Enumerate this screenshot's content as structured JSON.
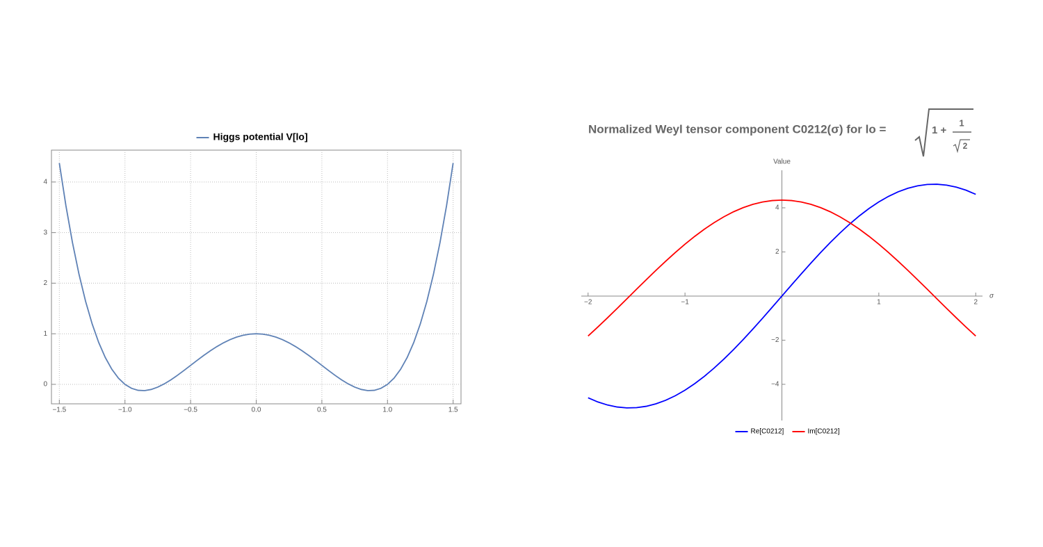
{
  "chart_data": [
    {
      "type": "line",
      "legend": "top",
      "grid": true,
      "x": [
        -1.5,
        -1.45,
        -1.4,
        -1.35,
        -1.3,
        -1.25,
        -1.2,
        -1.15,
        -1.1,
        -1.05,
        -1,
        -0.95,
        -0.9,
        -0.85,
        -0.8,
        -0.75,
        -0.7,
        -0.65,
        -0.6,
        -0.55,
        -0.5,
        -0.45,
        -0.4,
        -0.35,
        -0.3,
        -0.25,
        -0.2,
        -0.15,
        -0.1,
        -0.05,
        0,
        0.05,
        0.1,
        0.15,
        0.2,
        0.25,
        0.3,
        0.35,
        0.4,
        0.45,
        0.5,
        0.55,
        0.6,
        0.65,
        0.7,
        0.75,
        0.8,
        0.85,
        0.9,
        0.95,
        1,
        1.05,
        1.1,
        1.15,
        1.2,
        1.25,
        1.3,
        1.35,
        1.4,
        1.45,
        1.5
      ],
      "series": [
        {
          "name": "Higgs potential V[lo]",
          "color": "#5e81b5",
          "values": [
            4.375,
            3.5335,
            2.8032,
            2.1755,
            1.6422,
            1.1953,
            0.8272,
            0.5305,
            0.2982,
            0.1235,
            0,
            -0.0785,
            -0.1178,
            -0.1235,
            -0.1008,
            -0.0547,
            0.0102,
            0.0895,
            0.1792,
            0.2755,
            0.375,
            0.4745,
            0.5712,
            0.6625,
            0.7462,
            0.8203,
            0.8832,
            0.9335,
            0.9702,
            0.9925,
            1,
            0.9925,
            0.9702,
            0.9335,
            0.8832,
            0.8203,
            0.7462,
            0.6625,
            0.5712,
            0.4745,
            0.375,
            0.2755,
            0.1792,
            0.0895,
            0.0102,
            -0.0547,
            -0.1008,
            -0.1235,
            -0.1178,
            -0.0785,
            0,
            0.1235,
            0.2982,
            0.5305,
            0.8272,
            1.1953,
            1.6422,
            2.1755,
            2.8032,
            3.5335,
            4.375
          ]
        }
      ],
      "xlim": [
        -1.56,
        1.56
      ],
      "xticks": [
        {
          "value": -1.5,
          "label": "−1.5"
        },
        {
          "value": -1,
          "label": "−1.0"
        },
        {
          "value": -0.5,
          "label": "−0.5"
        },
        {
          "value": 0,
          "label": "0.0"
        },
        {
          "value": 0.5,
          "label": "0.5"
        },
        {
          "value": 1,
          "label": "1.0"
        },
        {
          "value": 1.5,
          "label": "1.5"
        }
      ],
      "ylim": [
        -0.385,
        4.63
      ],
      "yticks": [
        0,
        1,
        2,
        3,
        4
      ]
    },
    {
      "type": "line",
      "legend": "bottom",
      "grid": false,
      "title": "Normalized Weyl tensor component C0212(σ) for lo =",
      "title_formula": {
        "term": "1 +",
        "numerator": "1",
        "radicand": "2"
      },
      "xlabel": "σ",
      "ylabel": "Value",
      "x": [
        -2,
        -1.9,
        -1.8,
        -1.7,
        -1.6,
        -1.5,
        -1.4,
        -1.3,
        -1.2,
        -1.1,
        -1,
        -0.9,
        -0.8,
        -0.7,
        -0.6,
        -0.5,
        -0.4,
        -0.3,
        -0.2,
        -0.1,
        0,
        0.1,
        0.2,
        0.3,
        0.4,
        0.5,
        0.6,
        0.7,
        0.8,
        0.9,
        1,
        1.1,
        1.2,
        1.3,
        1.4,
        1.5,
        1.6,
        1.7,
        1.8,
        1.9,
        2
      ],
      "series": [
        {
          "name": "Re[C0212]",
          "color": "#0000ff",
          "values": [
            -4.61,
            -4.798,
            -4.937,
            -5.028,
            -5.068,
            -5.057,
            -4.996,
            -4.885,
            -4.725,
            -4.518,
            -4.266,
            -3.971,
            -3.637,
            -3.266,
            -2.862,
            -2.431,
            -1.974,
            -1.498,
            -1.007,
            -0.506,
            0,
            0.506,
            1.007,
            1.498,
            1.974,
            2.431,
            2.862,
            3.266,
            3.637,
            3.971,
            4.266,
            4.518,
            4.725,
            4.885,
            4.996,
            5.057,
            5.068,
            5.028,
            4.937,
            4.798,
            4.61
          ]
        },
        {
          "name": "Im[C0212]",
          "color": "#ff0000",
          "values": [
            -1.81,
            -1.406,
            -0.988,
            -0.56,
            -0.127,
            0.308,
            0.74,
            1.164,
            1.576,
            1.973,
            2.35,
            2.704,
            3.031,
            3.327,
            3.59,
            3.818,
            4.007,
            4.156,
            4.263,
            4.328,
            4.35,
            4.328,
            4.263,
            4.156,
            4.007,
            3.818,
            3.59,
            3.327,
            3.031,
            2.704,
            2.35,
            1.973,
            1.576,
            1.164,
            0.74,
            0.308,
            -0.127,
            -0.56,
            -0.988,
            -1.406,
            -1.81
          ]
        }
      ],
      "xlim": [
        -2.07,
        2.07
      ],
      "xticks": [
        {
          "value": -2,
          "label": "−2"
        },
        {
          "value": -1,
          "label": "−1"
        },
        1,
        2
      ],
      "ylim": [
        -5.64,
        5.7
      ],
      "yticks": [
        {
          "value": -4,
          "label": "−4"
        },
        {
          "value": -2,
          "label": "−2"
        },
        2,
        4
      ]
    }
  ]
}
